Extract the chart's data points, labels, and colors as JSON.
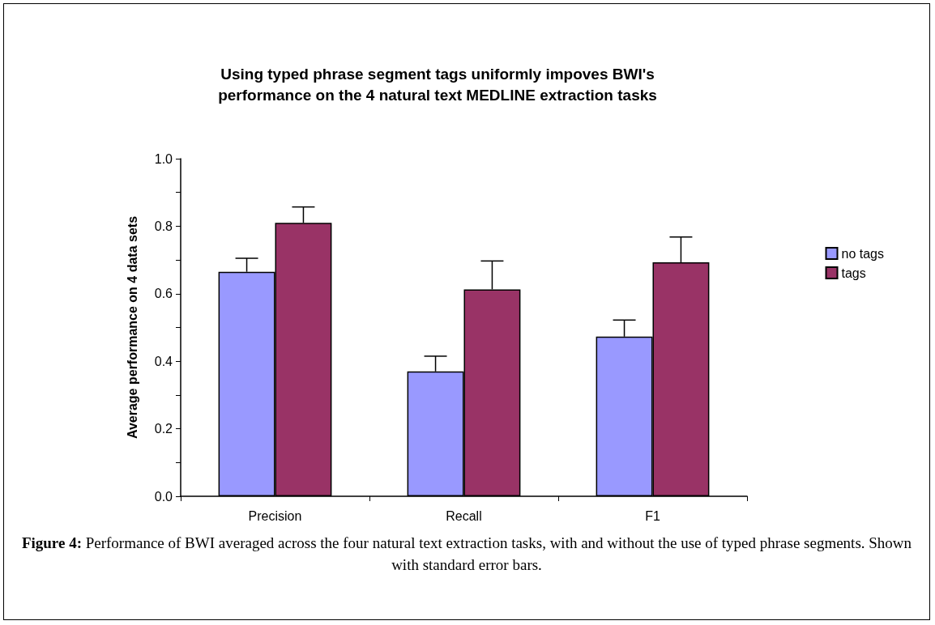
{
  "chart_data": {
    "type": "bar",
    "title": "Using typed phrase segment tags uniformly impoves BWI's\nperformance on the 4 natural text MEDLINE extraction tasks",
    "ylabel": "Average performance on 4 data sets",
    "categories": [
      "Precision",
      "Recall",
      "F1"
    ],
    "series": [
      {
        "name": "no tags",
        "color": "#9999ff",
        "values": [
          0.665,
          0.37,
          0.473
        ],
        "errors": [
          [
            0.665,
            0.705
          ],
          [
            0.37,
            0.415
          ],
          [
            0.473,
            0.522
          ]
        ]
      },
      {
        "name": "tags",
        "color": "#993366",
        "values": [
          0.81,
          0.613,
          0.693
        ],
        "errors": [
          [
            0.81,
            0.857
          ],
          [
            0.613,
            0.697
          ],
          [
            0.693,
            0.768
          ]
        ]
      }
    ],
    "ylim": [
      0,
      1
    ],
    "yticks": [
      {
        "value": 0,
        "label": "0.0"
      },
      {
        "value": 0.1,
        "label": null
      },
      0.2,
      {
        "value": 0.3,
        "label": null
      },
      0.4,
      {
        "value": 0.5,
        "label": null
      },
      0.6,
      {
        "value": 0.7,
        "label": null
      },
      0.8,
      {
        "value": 0.9,
        "label": null
      },
      {
        "value": 1,
        "label": "1.0"
      }
    ],
    "grid": false,
    "legend": "right",
    "annotations": [
      "Figure 4: Performance of BWI averaged across the four natural text extraction tasks, with and without the use of typed phrase segments.  Shown with standard error bars."
    ]
  }
}
